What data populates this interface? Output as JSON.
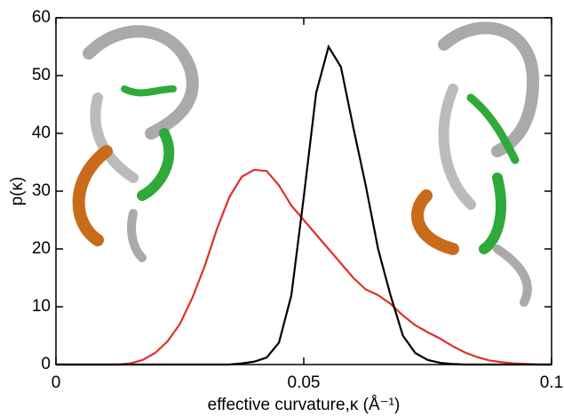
{
  "chart_data": {
    "type": "line",
    "x_label": "effective curvature,κ (Å⁻¹)",
    "y_label": "p(κ)",
    "x": [
      0,
      0.0025,
      0.005,
      0.0075,
      0.01,
      0.0125,
      0.015,
      0.0175,
      0.02,
      0.0225,
      0.025,
      0.0275,
      0.03,
      0.0325,
      0.035,
      0.0375,
      0.04,
      0.0425,
      0.045,
      0.0475,
      0.05,
      0.0525,
      0.055,
      0.0575,
      0.06,
      0.0625,
      0.065,
      0.0675,
      0.07,
      0.0725,
      0.075,
      0.0775,
      0.08,
      0.0825,
      0.085,
      0.0875,
      0.09,
      0.0925,
      0.095,
      0.0975,
      0.1
    ],
    "series": [
      {
        "color": "#e0302a",
        "values": [
          0,
          0,
          0,
          0,
          0,
          0,
          0.2,
          0.8,
          2,
          4,
          7,
          11.5,
          17,
          23.5,
          29,
          32.5,
          33.7,
          33.5,
          31,
          27.5,
          25,
          22.5,
          20,
          17.5,
          15,
          13,
          12,
          10.5,
          8.5,
          6.8,
          5.6,
          4.5,
          3.2,
          2.1,
          1.3,
          0.7,
          0.4,
          0.2,
          0.1,
          0,
          0
        ]
      },
      {
        "color": "#000000",
        "values": [
          0,
          0,
          0,
          0,
          0,
          0,
          0,
          0,
          0,
          0,
          0,
          0,
          0,
          0,
          0,
          0.2,
          0.5,
          1.2,
          3.8,
          12,
          29,
          47,
          55,
          51.5,
          41,
          31,
          20,
          12,
          5,
          2,
          0.8,
          0.3,
          0.1,
          0,
          0,
          0,
          0,
          0,
          0,
          0,
          0
        ]
      }
    ],
    "xlim": [
      0,
      0.1
    ],
    "xticks": [
      0,
      0.05,
      0.1
    ],
    "ylim": [
      0,
      60
    ],
    "yticks": [
      0,
      10,
      20,
      30,
      40,
      50,
      60
    ]
  }
}
